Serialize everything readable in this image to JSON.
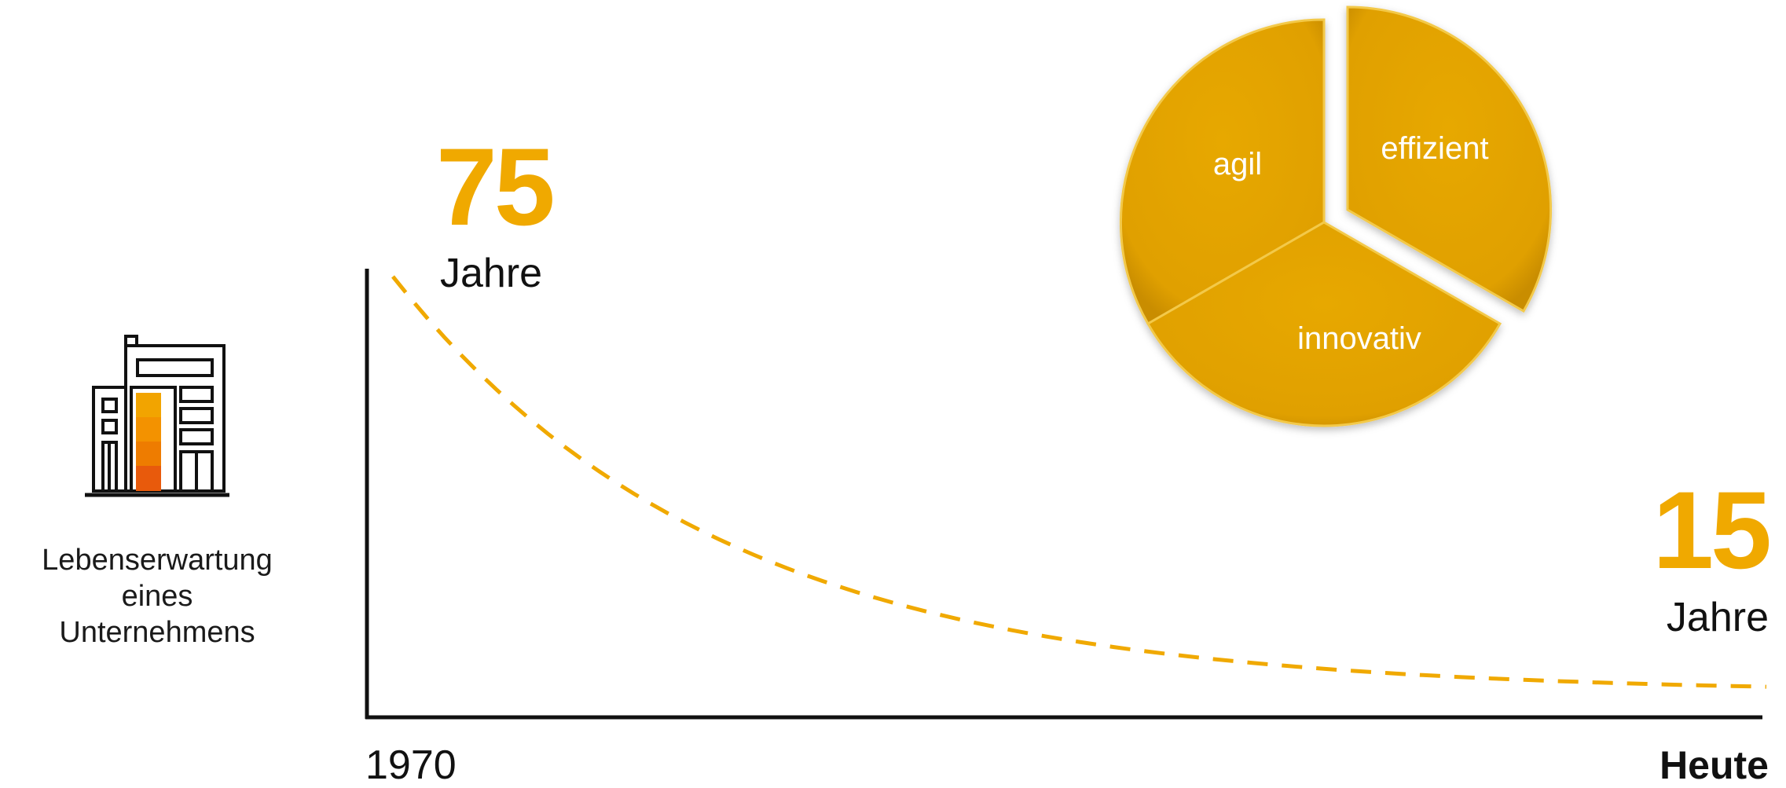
{
  "colors": {
    "accent": "#f0a900",
    "pie_fill": "#e3a400",
    "axis": "#111111",
    "building_orange": [
      "#f2a400",
      "#f39200",
      "#ee7c00",
      "#e85a0c"
    ]
  },
  "building": {
    "icon": "office-building-icon",
    "label_lines": [
      "Lebenserwartung",
      "eines",
      "Unternehmens"
    ]
  },
  "start": {
    "value_label": "75",
    "unit": "Jahre",
    "x_label": "1970"
  },
  "end": {
    "value_label": "15",
    "unit": "Jahre",
    "x_label": "Heute"
  },
  "pie": {
    "slices": [
      {
        "label": "agil",
        "value": 1
      },
      {
        "label": "effizient",
        "value": 1
      },
      {
        "label": "innovativ",
        "value": 1
      }
    ],
    "exploded": "effizient"
  },
  "chart_data": {
    "type": "line",
    "series": [
      {
        "style": "dashed",
        "x": [
          "1970",
          "Heute"
        ],
        "values": [
          75,
          15
        ]
      }
    ],
    "x": [
      "1970",
      "Heute"
    ],
    "ylim": [
      15,
      75
    ],
    "grid": false,
    "legend": "none",
    "annotations": [
      "75 Jahre",
      "15 Jahre"
    ]
  }
}
